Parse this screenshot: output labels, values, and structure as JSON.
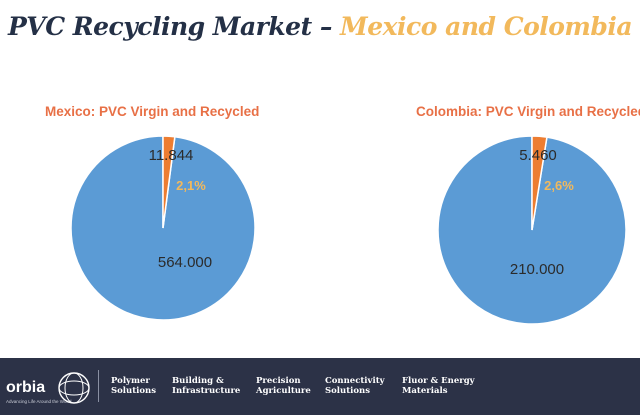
{
  "slide": {
    "title_main": "PVC Recycling Market –",
    "title_accent": "Mexico and Colombia"
  },
  "chart_data": [
    {
      "type": "pie",
      "title": "Mexico: PVC Virgin and Recycled",
      "slices": [
        {
          "label": "564.000",
          "value": 564000,
          "color": "#5b9bd5"
        },
        {
          "label": "11.844",
          "value": 11844,
          "color": "#ed7d31"
        }
      ],
      "annotation": "2,1%"
    },
    {
      "type": "pie",
      "title": "Colombia: PVC Virgin and Recycled",
      "slices": [
        {
          "label": "210.000",
          "value": 210000,
          "color": "#5b9bd5"
        },
        {
          "label": "5.460",
          "value": 5460,
          "color": "#ed7d31"
        }
      ],
      "annotation": "2,6%"
    }
  ],
  "footer": {
    "logo_text": "orbia",
    "logo_tagline": "Advancing Life Around the World",
    "segments": [
      {
        "line1": "Polymer",
        "line2": "Solutions"
      },
      {
        "line1": "Building &",
        "line2": "Infrastructure"
      },
      {
        "line1": "Precision",
        "line2": "Agriculture"
      },
      {
        "line1": "Connectivity",
        "line2": "Solutions"
      },
      {
        "line1": "Fluor & Energy",
        "line2": "Materials"
      }
    ]
  }
}
